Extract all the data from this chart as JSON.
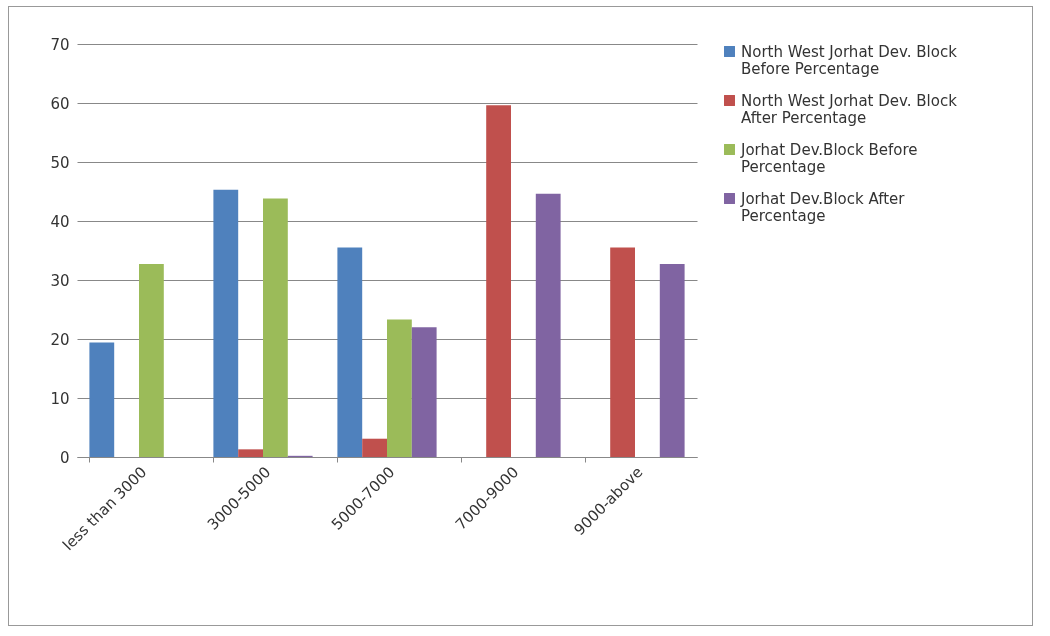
{
  "chart_data": {
    "type": "bar",
    "categories": [
      "less than 3000",
      "3000-5000",
      "5000-7000",
      "7000-9000",
      "9000-above"
    ],
    "series": [
      {
        "name": "North West Jorhat Dev. Block Before Percentage",
        "color": "#4f81bd",
        "values": [
          19.4,
          45.3,
          35.5,
          null,
          null
        ]
      },
      {
        "name": "North West Jorhat Dev. Block After Percentage",
        "color": "#c0504d",
        "values": [
          null,
          1.3,
          3.1,
          59.6,
          35.5
        ]
      },
      {
        "name": "Jorhat Dev.Block Before Percentage",
        "color": "#9bbb59",
        "values": [
          32.7,
          43.8,
          23.3,
          null,
          null
        ]
      },
      {
        "name": "Jorhat Dev.Block After Percentage",
        "color": "#8064a2",
        "values": [
          null,
          0.2,
          22,
          44.6,
          32.7
        ]
      }
    ],
    "ylim": [
      0,
      70
    ],
    "yticks": [
      0,
      10,
      20,
      30,
      40,
      50,
      60,
      70
    ],
    "grid": "y",
    "legend": "right"
  }
}
